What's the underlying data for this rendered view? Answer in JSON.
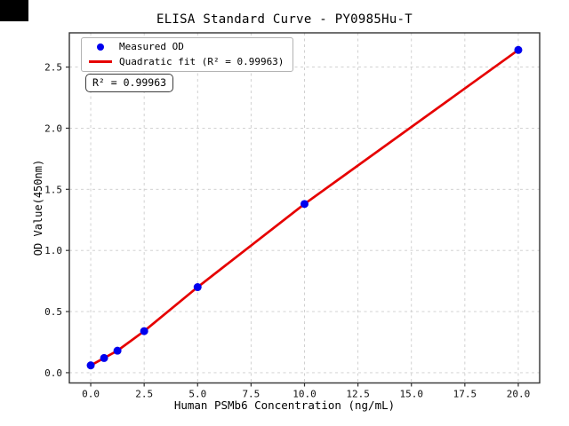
{
  "figure": {
    "title": "ELISA Standard Curve - PY0985Hu-T",
    "xlabel": "Human PSMb6 Concentration (ng/mL)",
    "ylabel": "OD Value(450nm)",
    "annotation": "R² = 0.99963",
    "legend": [
      {
        "label": "Measured OD",
        "marker": "dot",
        "color": "#0000ee"
      },
      {
        "label": "Quadratic fit (R² = 0.99963)",
        "marker": "line",
        "color": "#e60000"
      }
    ]
  },
  "chart_data": {
    "type": "scatter",
    "title": "ELISA Standard Curve - PY0985Hu-T",
    "xlabel": "Human PSMb6 Concentration (ng/mL)",
    "ylabel": "OD Value(450nm)",
    "x": [
      0,
      0.625,
      1.25,
      2.5,
      5,
      10,
      20
    ],
    "series": [
      {
        "name": "Measured OD",
        "type": "scatter",
        "color": "#0000ee",
        "values": [
          0.06,
          0.12,
          0.18,
          0.34,
          0.7,
          1.38,
          2.64
        ]
      },
      {
        "name": "Quadratic fit (R² = 0.99963)",
        "type": "line",
        "color": "#e60000",
        "values": [
          0.06,
          0.12,
          0.18,
          0.34,
          0.7,
          1.38,
          2.64
        ]
      }
    ],
    "fit": {
      "kind": "quadratic",
      "r_squared": 0.99963
    },
    "xticks": [
      0,
      2.5,
      5,
      7.5,
      10,
      12.5,
      15,
      17.5,
      20
    ],
    "yticks": [
      0,
      0.5,
      1,
      1.5,
      2,
      2.5
    ],
    "xlim": [
      -1,
      21
    ],
    "ylim": [
      -0.084,
      2.78
    ],
    "grid": true,
    "grid_color": "#cccccc",
    "spine_color": "#333333",
    "legend_position": "upper left"
  }
}
